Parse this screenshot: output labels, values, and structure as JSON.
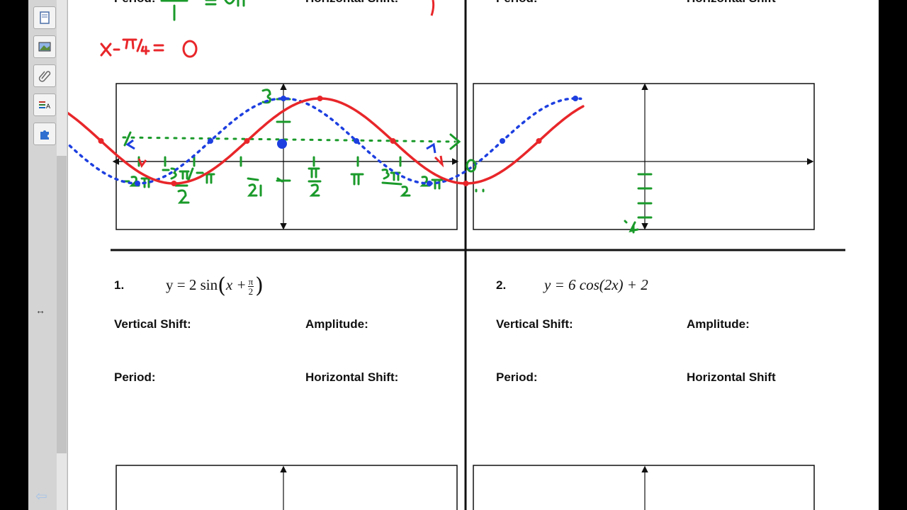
{
  "toolbar": {
    "tools": [
      {
        "icon": "page-sorter-icon"
      },
      {
        "icon": "gallery-icon"
      },
      {
        "icon": "attachments-icon"
      },
      {
        "icon": "properties-icon"
      },
      {
        "icon": "add-ons-icon"
      }
    ],
    "resize_symbol": "↔",
    "back_symbol": "⇦"
  },
  "worksheet": {
    "top_left_cut_labels": {
      "period": "Period:",
      "horizontal_shift": "Horizontal Shift:"
    },
    "top_right_cut_labels": {
      "period": "Period:",
      "horizontal_shift": "Horizontal Shift"
    },
    "problem1": {
      "number": "1.",
      "eq_prefix": "y = 2 sin",
      "eq_x": "x +",
      "eq_frac_num": "π",
      "eq_frac_den": "2",
      "vertical_shift": "Vertical Shift:",
      "amplitude": "Amplitude:",
      "period": "Period:",
      "horizontal_shift": "Horizontal Shift:"
    },
    "problem2": {
      "number": "2.",
      "equation": "y = 6 cos(2x) + 2",
      "vertical_shift": "Vertical Shift:",
      "amplitude": "Amplitude:",
      "period": "Period:",
      "horizontal_shift": "Horizontal Shift"
    }
  },
  "annotations": {
    "handwritten_eq": "x− π/4 = 0",
    "graph1_ticks": [
      "-2π",
      "-3π/2",
      "-π",
      "-π/2",
      "π/2",
      "π",
      "3π/2",
      "2π"
    ],
    "graph1_y_top": "3",
    "graph2_y_bottom": "-4"
  },
  "colors": {
    "red_ink": "#e8262a",
    "blue_ink": "#1d3fe0",
    "green_ink": "#1a9a2a",
    "sidebar_bg": "#d4d4d4"
  }
}
